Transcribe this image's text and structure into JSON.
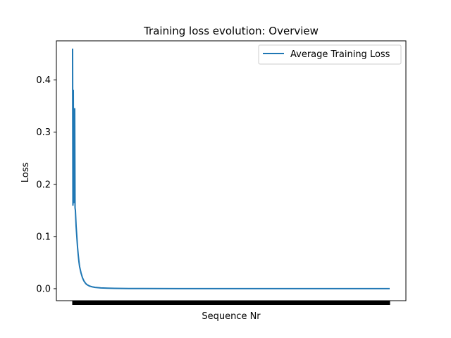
{
  "chart_data": {
    "type": "line",
    "title": "Training loss evolution: Overview",
    "xlabel": "Sequence Nr",
    "ylabel": "Loss",
    "ylim": [
      -0.023,
      0.475
    ],
    "xlim": [
      -23,
      473
    ],
    "yticks": [
      0.0,
      0.1,
      0.2,
      0.3,
      0.4
    ],
    "ytick_labels": [
      "0.0",
      "0.1",
      "0.2",
      "0.3",
      "0.4"
    ],
    "x_tick_labels_visible": false,
    "grid": false,
    "legend": {
      "position": "top-right",
      "entries": [
        "Average Training Loss"
      ]
    },
    "series": [
      {
        "name": "Average Training Loss",
        "color": "#1f77b4",
        "x": [
          0,
          0.5,
          1,
          1.5,
          2,
          2.5,
          3,
          3.5,
          4,
          5,
          6,
          7,
          8,
          9,
          10,
          12,
          14,
          16,
          18,
          20,
          24,
          28,
          32,
          40,
          50,
          60,
          80,
          100,
          150,
          200,
          300,
          450
        ],
        "y": [
          0.46,
          0.16,
          0.38,
          0.165,
          0.33,
          0.2,
          0.345,
          0.155,
          0.15,
          0.12,
          0.1,
          0.08,
          0.065,
          0.052,
          0.042,
          0.03,
          0.021,
          0.015,
          0.011,
          0.008,
          0.005,
          0.0035,
          0.0025,
          0.0015,
          0.001,
          0.0006,
          0.0003,
          0.0002,
          0.0001,
          0.0001,
          0.0001,
          0.0001
        ]
      }
    ]
  }
}
